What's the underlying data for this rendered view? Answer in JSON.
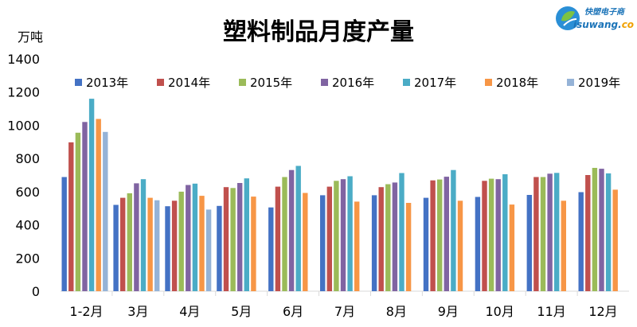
{
  "logo": {
    "name": "快塑电子商",
    "url_main": "isuwang.",
    "url_tail": "co"
  },
  "chart_data": {
    "type": "bar",
    "title": "塑料制品月度产量",
    "ylabel": "万吨",
    "xlabel": "",
    "ylim": [
      0,
      1400
    ],
    "yticks": [
      0,
      200,
      400,
      600,
      800,
      1000,
      1200,
      1400
    ],
    "grid": false,
    "legend_position": "top",
    "categories": [
      "1-2月",
      "3月",
      "4月",
      "5月",
      "6月",
      "7月",
      "8月",
      "9月",
      "10月",
      "11月",
      "12月"
    ],
    "series": [
      {
        "name": "2013年",
        "color": "#4472c4",
        "values": [
          688,
          520,
          512,
          514,
          505,
          578,
          578,
          563,
          568,
          580,
          597
        ]
      },
      {
        "name": "2014年",
        "color": "#c0504d",
        "values": [
          897,
          563,
          545,
          627,
          630,
          630,
          627,
          668,
          665,
          688,
          700
        ]
      },
      {
        "name": "2015年",
        "color": "#9bbb59",
        "values": [
          955,
          590,
          600,
          622,
          688,
          665,
          645,
          673,
          678,
          688,
          743
        ]
      },
      {
        "name": "2016年",
        "color": "#8064a2",
        "values": [
          1020,
          650,
          640,
          652,
          730,
          675,
          655,
          690,
          675,
          708,
          738
        ]
      },
      {
        "name": "2017年",
        "color": "#4bacc6",
        "values": [
          1160,
          675,
          648,
          680,
          755,
          693,
          712,
          730,
          705,
          713,
          710
        ]
      },
      {
        "name": "2018年",
        "color": "#f79646",
        "values": [
          1038,
          563,
          575,
          570,
          592,
          540,
          532,
          545,
          522,
          545,
          612
        ]
      },
      {
        "name": "2019年",
        "color": "#95b3d7",
        "values": [
          960,
          548,
          492,
          null,
          null,
          null,
          null,
          null,
          null,
          null,
          null
        ]
      }
    ]
  }
}
